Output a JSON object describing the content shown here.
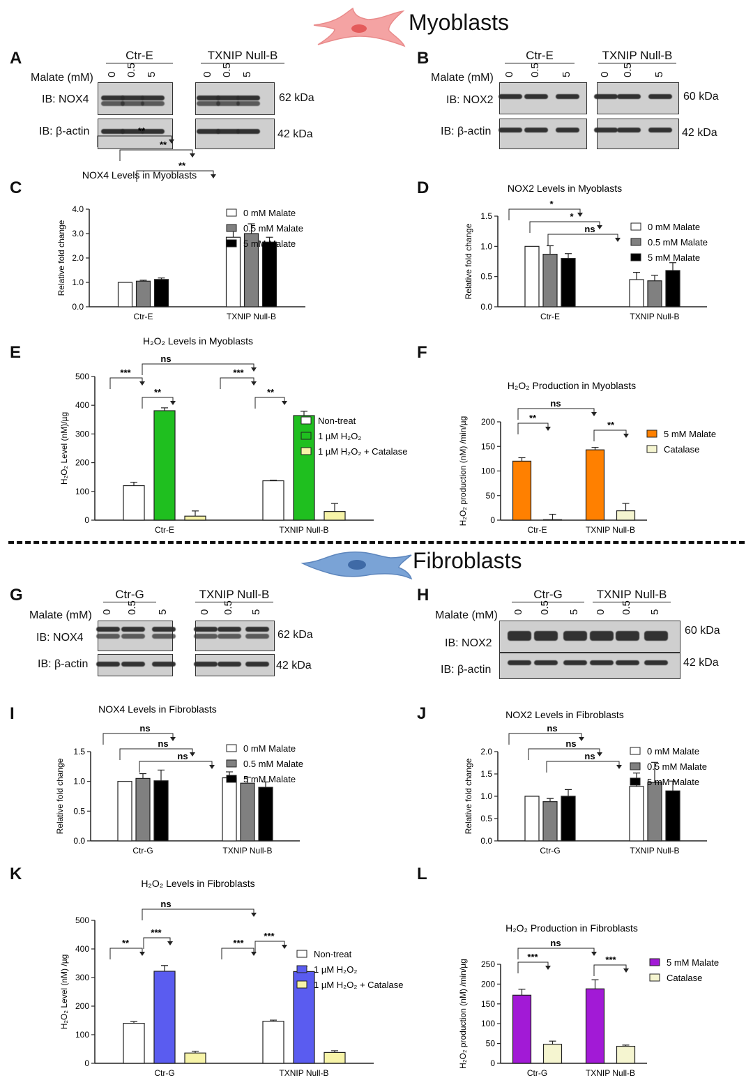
{
  "sections": {
    "myoblasts": "Myoblasts",
    "fibroblasts": "Fibroblasts"
  },
  "panels": [
    "A",
    "B",
    "C",
    "D",
    "E",
    "F",
    "G",
    "H",
    "I",
    "J",
    "K",
    "L"
  ],
  "blots": {
    "A": {
      "groups": [
        "Ctr-E",
        "TXNIP Null-B"
      ],
      "malate_label": "Malate (mM)",
      "lanes": [
        "0",
        "0.5",
        "5"
      ],
      "rows": [
        {
          "label": "IB: NOX4",
          "kda": "62 kDa"
        },
        {
          "label": "IB: β-actin",
          "kda": "42 kDa"
        }
      ]
    },
    "B": {
      "groups": [
        "Ctr-E",
        "TXNIP Null-B"
      ],
      "malate_label": "Malate (mM)",
      "lanes": [
        "0",
        "0.5",
        "5"
      ],
      "rows": [
        {
          "label": "IB: NOX2",
          "kda": "60 kDa"
        },
        {
          "label": "IB: β-actin",
          "kda": "42 kDa"
        }
      ]
    },
    "G": {
      "groups": [
        "Ctr-G",
        "TXNIP Null-B"
      ],
      "malate_label": "Malate (mM)",
      "lanes": [
        "0",
        "0.5",
        "5"
      ],
      "rows": [
        {
          "label": "IB: NOX4",
          "kda": "62 kDa"
        },
        {
          "label": "IB: β-actin",
          "kda": "42 kDa"
        }
      ]
    },
    "H": {
      "groups": [
        "Ctr-G",
        "TXNIP Null-B"
      ],
      "malate_label": "Malate (mM)",
      "lanes": [
        "0",
        "0.5",
        "5"
      ],
      "rows": [
        {
          "label": "IB: NOX2",
          "kda": "60 kDa"
        },
        {
          "label": "IB: β-actin",
          "kda": "42 kDa"
        }
      ]
    }
  },
  "colors": {
    "white": "#ffffff",
    "grey": "#808080",
    "black": "#000000",
    "green": "#1fbf1f",
    "yellow": "#f7f4a8",
    "orange": "#ff8000",
    "cream": "#f5f5d0",
    "blue": "#5a5cf0",
    "purple": "#a21ad6"
  },
  "chart_data": [
    {
      "id": "C",
      "type": "bar",
      "title": "NOX4 Levels in Myoblasts",
      "ylabel": "Relative fold change",
      "ylim": [
        0,
        4
      ],
      "yticks": [
        "0.0",
        "1.0",
        "2.0",
        "3.0",
        "4.0"
      ],
      "categories": [
        "Ctr-E",
        "TXNIP Null-B"
      ],
      "series": [
        {
          "name": "0 mM Malate",
          "color": "white",
          "values": [
            1.0,
            2.85
          ],
          "err": [
            0,
            0.35
          ]
        },
        {
          "name": "0.5 mM Malate",
          "color": "grey",
          "values": [
            1.05,
            3.0
          ],
          "err": [
            0.04,
            0.4
          ]
        },
        {
          "name": "5 mM Malate",
          "color": "black",
          "values": [
            1.12,
            2.65
          ],
          "err": [
            0.06,
            0.2
          ]
        }
      ],
      "sig": [
        "**",
        "**",
        "**"
      ]
    },
    {
      "id": "D",
      "type": "bar",
      "title": "NOX2 Levels in Myoblasts",
      "ylabel": "Relative fold change",
      "ylim": [
        0,
        1.5
      ],
      "yticks": [
        "0.0",
        "0.5",
        "1.0",
        "1.5"
      ],
      "categories": [
        "Ctr-E",
        "TXNIP Null-B"
      ],
      "series": [
        {
          "name": "0 mM Malate",
          "color": "white",
          "values": [
            1.0,
            0.45
          ],
          "err": [
            0,
            0.12
          ]
        },
        {
          "name": "0.5 mM Malate",
          "color": "grey",
          "values": [
            0.87,
            0.43
          ],
          "err": [
            0.14,
            0.09
          ]
        },
        {
          "name": "5 mM Malate",
          "color": "black",
          "values": [
            0.8,
            0.6
          ],
          "err": [
            0.08,
            0.13
          ]
        }
      ],
      "sig": [
        "*",
        "*",
        "ns"
      ]
    },
    {
      "id": "E",
      "type": "bar",
      "title": "H₂O₂ Levels in Myoblasts",
      "ylabel": "H₂O₂ Level (nM)/µg",
      "ylim": [
        0,
        500
      ],
      "yticks": [
        "0",
        "100",
        "200",
        "300",
        "400",
        "500"
      ],
      "categories": [
        "Ctr-E",
        "TXNIP Null-B"
      ],
      "series": [
        {
          "name": "Non-treat",
          "color": "white",
          "values": [
            120,
            137
          ],
          "err": [
            12,
            2
          ]
        },
        {
          "name": "1 µM H₂O₂",
          "color": "green",
          "values": [
            381,
            364
          ],
          "err": [
            10,
            15
          ]
        },
        {
          "name": "1 µM H₂O₂ + Catalase",
          "color": "yellow",
          "values": [
            14,
            30
          ],
          "err": [
            18,
            28
          ]
        }
      ],
      "sig": [
        "ns",
        "***",
        "**",
        "***",
        "**"
      ]
    },
    {
      "id": "F",
      "type": "bar",
      "title": "H₂O₂ Production in Myoblasts",
      "ylabel": "H₂O₂ production (nM) /min/µg",
      "ylim": [
        0,
        200
      ],
      "yticks": [
        "0",
        "50",
        "100",
        "150",
        "200"
      ],
      "categories": [
        "Ctr-E",
        "TXNIP Null-B"
      ],
      "series": [
        {
          "name": "5 mM Malate",
          "color": "orange",
          "values": [
            120,
            143
          ],
          "err": [
            7,
            5
          ]
        },
        {
          "name": "Catalase",
          "color": "cream",
          "values": [
            1,
            19
          ],
          "err": [
            11,
            15
          ]
        }
      ],
      "sig": [
        "ns",
        "**",
        "**"
      ]
    },
    {
      "id": "I",
      "type": "bar",
      "title": "NOX4 Levels in Fibroblasts",
      "ylabel": "Relative fold change",
      "ylim": [
        0,
        1.5
      ],
      "yticks": [
        "0.0",
        "0.5",
        "1.0",
        "1.5"
      ],
      "categories": [
        "Ctr-G",
        "TXNIP Null-B"
      ],
      "series": [
        {
          "name": "0 mM Malate",
          "color": "white",
          "values": [
            1.0,
            1.06
          ],
          "err": [
            0,
            0.1
          ]
        },
        {
          "name": "0.5 mM Malate",
          "color": "grey",
          "values": [
            1.05,
            0.97
          ],
          "err": [
            0.08,
            0.1
          ]
        },
        {
          "name": "5 mM Malate",
          "color": "black",
          "values": [
            1.01,
            0.9
          ],
          "err": [
            0.18,
            0.09
          ]
        }
      ],
      "sig": [
        "ns",
        "ns",
        "ns"
      ]
    },
    {
      "id": "J",
      "type": "bar",
      "title": "NOX2 Levels in Fibroblasts",
      "ylabel": "Relative fold change",
      "ylim": [
        0,
        2.0
      ],
      "yticks": [
        "0.0",
        "0.5",
        "1.0",
        "1.5",
        "2.0"
      ],
      "categories": [
        "Ctr-G",
        "TXNIP Null-B"
      ],
      "series": [
        {
          "name": "0 mM Malate",
          "color": "white",
          "values": [
            1.0,
            1.22
          ],
          "err": [
            0,
            0.3
          ]
        },
        {
          "name": "0.5 mM Malate",
          "color": "grey",
          "values": [
            0.88,
            1.31
          ],
          "err": [
            0.07,
            0.45
          ]
        },
        {
          "name": "5 mM Malate",
          "color": "black",
          "values": [
            1.0,
            1.12
          ],
          "err": [
            0.15,
            0.22
          ]
        }
      ],
      "sig": [
        "ns",
        "ns",
        "ns"
      ]
    },
    {
      "id": "K",
      "type": "bar",
      "title": "H₂O₂ Levels in Fibroblasts",
      "ylabel": "H₂O₂ Level (nM) /µg",
      "ylim": [
        0,
        500
      ],
      "yticks": [
        "0",
        "100",
        "200",
        "300",
        "400",
        "500"
      ],
      "categories": [
        "Ctr-G",
        "TXNIP Null-B"
      ],
      "series": [
        {
          "name": "Non-treat",
          "color": "white",
          "values": [
            140,
            147
          ],
          "err": [
            6,
            4
          ]
        },
        {
          "name": "1 µM H₂O₂",
          "color": "blue",
          "values": [
            322,
            321
          ],
          "err": [
            20,
            18
          ]
        },
        {
          "name": "1 µM H₂O₂ + Catalase",
          "color": "yellow",
          "values": [
            36,
            38
          ],
          "err": [
            6,
            6
          ]
        }
      ],
      "sig": [
        "ns",
        "**",
        "***",
        "***",
        "***"
      ]
    },
    {
      "id": "L",
      "type": "bar",
      "title": "H₂O₂ Production in Fibroblasts",
      "ylabel": "H₂O₂ production (nM) /min/µg",
      "ylim": [
        0,
        250
      ],
      "yticks": [
        "0",
        "50",
        "100",
        "150",
        "200",
        "250"
      ],
      "categories": [
        "Ctr-G",
        "TXNIP Null-B"
      ],
      "series": [
        {
          "name": "5 mM Malate",
          "color": "purple",
          "values": [
            172,
            188
          ],
          "err": [
            15,
            23
          ]
        },
        {
          "name": "Catalase",
          "color": "cream",
          "values": [
            48,
            43
          ],
          "err": [
            8,
            3
          ]
        }
      ],
      "sig": [
        "ns",
        "***",
        "***"
      ]
    }
  ]
}
